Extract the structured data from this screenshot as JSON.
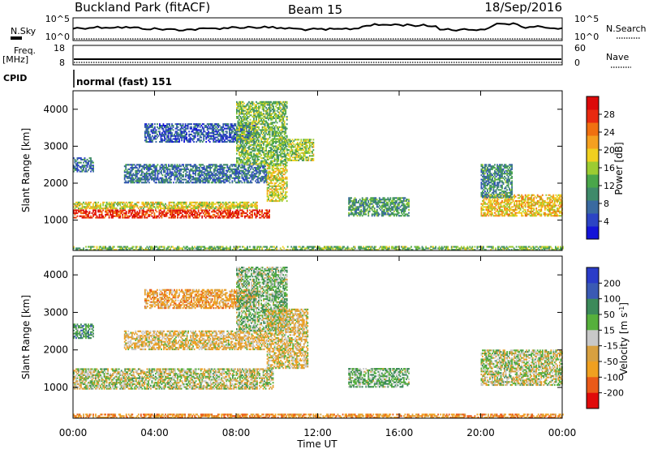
{
  "header": {
    "station": "Buckland Park (fitACF)",
    "beam": "Beam 15",
    "date": "18/Sep/2016"
  },
  "nsky_panel": {
    "left_label": "N.Sky",
    "right_label": "N.Search",
    "left_ticks": [
      "10^5",
      "10^0"
    ],
    "right_ticks": [
      "10^5",
      "10^0"
    ]
  },
  "freq_panel": {
    "left_label_line1": "Freq.",
    "left_label_line2": "[MHz]",
    "right_label": "Nave",
    "left_ticks": [
      "18",
      "8"
    ],
    "right_ticks": [
      "60",
      "0"
    ]
  },
  "cpid": {
    "label": "CPID",
    "value": "normal (fast) 151"
  },
  "time_axis": {
    "title": "Time UT",
    "ticks": [
      "00:00",
      "04:00",
      "08:00",
      "12:00",
      "16:00",
      "20:00",
      "00:00"
    ],
    "hours": [
      0,
      4,
      8,
      12,
      16,
      20,
      24
    ]
  },
  "chart_data": [
    {
      "type": "heatmap",
      "name": "power",
      "ylabel": "Slant Range [km]",
      "yticks": [
        1000,
        2000,
        3000,
        4000
      ],
      "ylim": [
        180,
        4500
      ],
      "xlim": [
        0,
        24
      ],
      "colorbar": {
        "label": "Power [dB]",
        "range": [
          0,
          32
        ],
        "ticks": [
          4,
          8,
          12,
          16,
          20,
          24,
          28
        ],
        "colors": [
          "#1414d8",
          "#2c44c4",
          "#3a6aa0",
          "#3f8a6a",
          "#4aa64a",
          "#9ccc32",
          "#f0d020",
          "#f5a020",
          "#f07010",
          "#e82a10",
          "#dc0a0a"
        ]
      },
      "regions": [
        {
          "t0": 0.0,
          "t1": 9.6,
          "r0": 1050,
          "r1": 1260,
          "value": 28
        },
        {
          "t0": 0.0,
          "t1": 9.0,
          "r0": 1300,
          "r1": 1480,
          "value": 18
        },
        {
          "t0": 0.0,
          "t1": 1.0,
          "r0": 2300,
          "r1": 2700,
          "value": 8
        },
        {
          "t0": 2.5,
          "t1": 9.5,
          "r0": 2000,
          "r1": 2500,
          "value": 8
        },
        {
          "t0": 3.5,
          "t1": 9.0,
          "r0": 3100,
          "r1": 3600,
          "value": 6
        },
        {
          "t0": 8.0,
          "t1": 10.5,
          "r0": 2500,
          "r1": 4200,
          "value": 14
        },
        {
          "t0": 9.5,
          "t1": 10.5,
          "r0": 1500,
          "r1": 2500,
          "value": 18
        },
        {
          "t0": 10.5,
          "t1": 11.8,
          "r0": 2600,
          "r1": 3200,
          "value": 16
        },
        {
          "t0": 13.5,
          "t1": 16.5,
          "r0": 1100,
          "r1": 1600,
          "value": 11
        },
        {
          "t0": 20.0,
          "t1": 24.0,
          "r0": 1100,
          "r1": 1700,
          "value": 20
        },
        {
          "t0": 20.0,
          "t1": 21.5,
          "r0": 1600,
          "r1": 2500,
          "value": 10
        },
        {
          "t0": 0.0,
          "t1": 24.0,
          "r0": 180,
          "r1": 280,
          "value": 14
        }
      ]
    },
    {
      "type": "heatmap",
      "name": "velocity",
      "ylabel": "Slant Range [km]",
      "yticks": [
        1000,
        2000,
        3000,
        4000
      ],
      "ylim": [
        180,
        4500
      ],
      "xlim": [
        0,
        24
      ],
      "colorbar": {
        "label_main": "Velocity [m s",
        "label_sup": "-1",
        "label_end": "]",
        "ticks": [
          200,
          100,
          50,
          15,
          -15,
          -50,
          -100,
          -200
        ],
        "colors": [
          "#2a3cc8",
          "#3a5ab4",
          "#3c8a5a",
          "#56b03c",
          "#c8c8c8",
          "#d8a040",
          "#f0a020",
          "#ea5a18",
          "#e00a0a"
        ]
      },
      "regions": [
        {
          "t0": 0.0,
          "t1": 9.8,
          "r0": 950,
          "r1": 1500,
          "value": 0
        },
        {
          "t0": 0.0,
          "t1": 1.0,
          "r0": 2300,
          "r1": 2700,
          "value": 60
        },
        {
          "t0": 2.5,
          "t1": 9.5,
          "r0": 2000,
          "r1": 2500,
          "value": -30
        },
        {
          "t0": 3.5,
          "t1": 9.0,
          "r0": 3100,
          "r1": 3600,
          "value": -60
        },
        {
          "t0": 8.0,
          "t1": 10.5,
          "r0": 2500,
          "r1": 4200,
          "value": 30
        },
        {
          "t0": 9.5,
          "t1": 11.5,
          "r0": 1500,
          "r1": 3100,
          "value": -25
        },
        {
          "t0": 13.5,
          "t1": 16.5,
          "r0": 1000,
          "r1": 1500,
          "value": 40
        },
        {
          "t0": 20.0,
          "t1": 24.0,
          "r0": 1050,
          "r1": 2000,
          "value": 0
        },
        {
          "t0": 0.0,
          "t1": 24.0,
          "r0": 180,
          "r1": 280,
          "value": -80
        }
      ]
    }
  ]
}
